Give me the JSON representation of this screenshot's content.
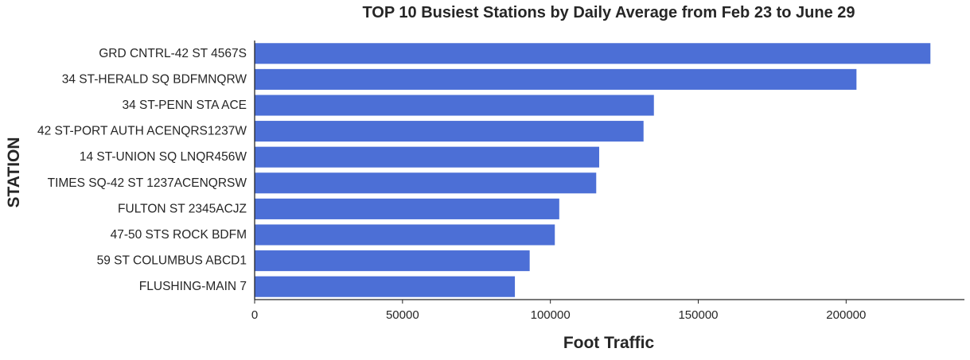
{
  "chart_data": {
    "type": "bar",
    "orientation": "horizontal",
    "title": "TOP 10 Busiest Stations by Daily Average from Feb 23 to June 29",
    "xlabel": "Foot Traffic",
    "ylabel": "STATION",
    "categories": [
      "GRD CNTRL-42 ST 4567S",
      "34 ST-HERALD SQ BDFMNQRW",
      "34 ST-PENN STA ACE",
      "42 ST-PORT AUTH ACENQRS1237W",
      "14 ST-UNION SQ LNQR456W",
      "TIMES SQ-42 ST 1237ACENQRSW",
      "FULTON ST 2345ACJZ",
      "47-50 STS ROCK BDFM",
      "59 ST COLUMBUS ABCD1",
      "FLUSHING-MAIN 7"
    ],
    "values": [
      228500,
      203500,
      135000,
      131500,
      116500,
      115500,
      103000,
      101500,
      93000,
      88000
    ],
    "xlim": [
      0,
      240000
    ],
    "xticks": [
      0,
      50000,
      100000,
      150000,
      200000
    ],
    "xtick_labels": [
      "0",
      "50000",
      "100000",
      "150000",
      "200000"
    ],
    "bar_color": "#4c6fd6",
    "grid": false
  }
}
